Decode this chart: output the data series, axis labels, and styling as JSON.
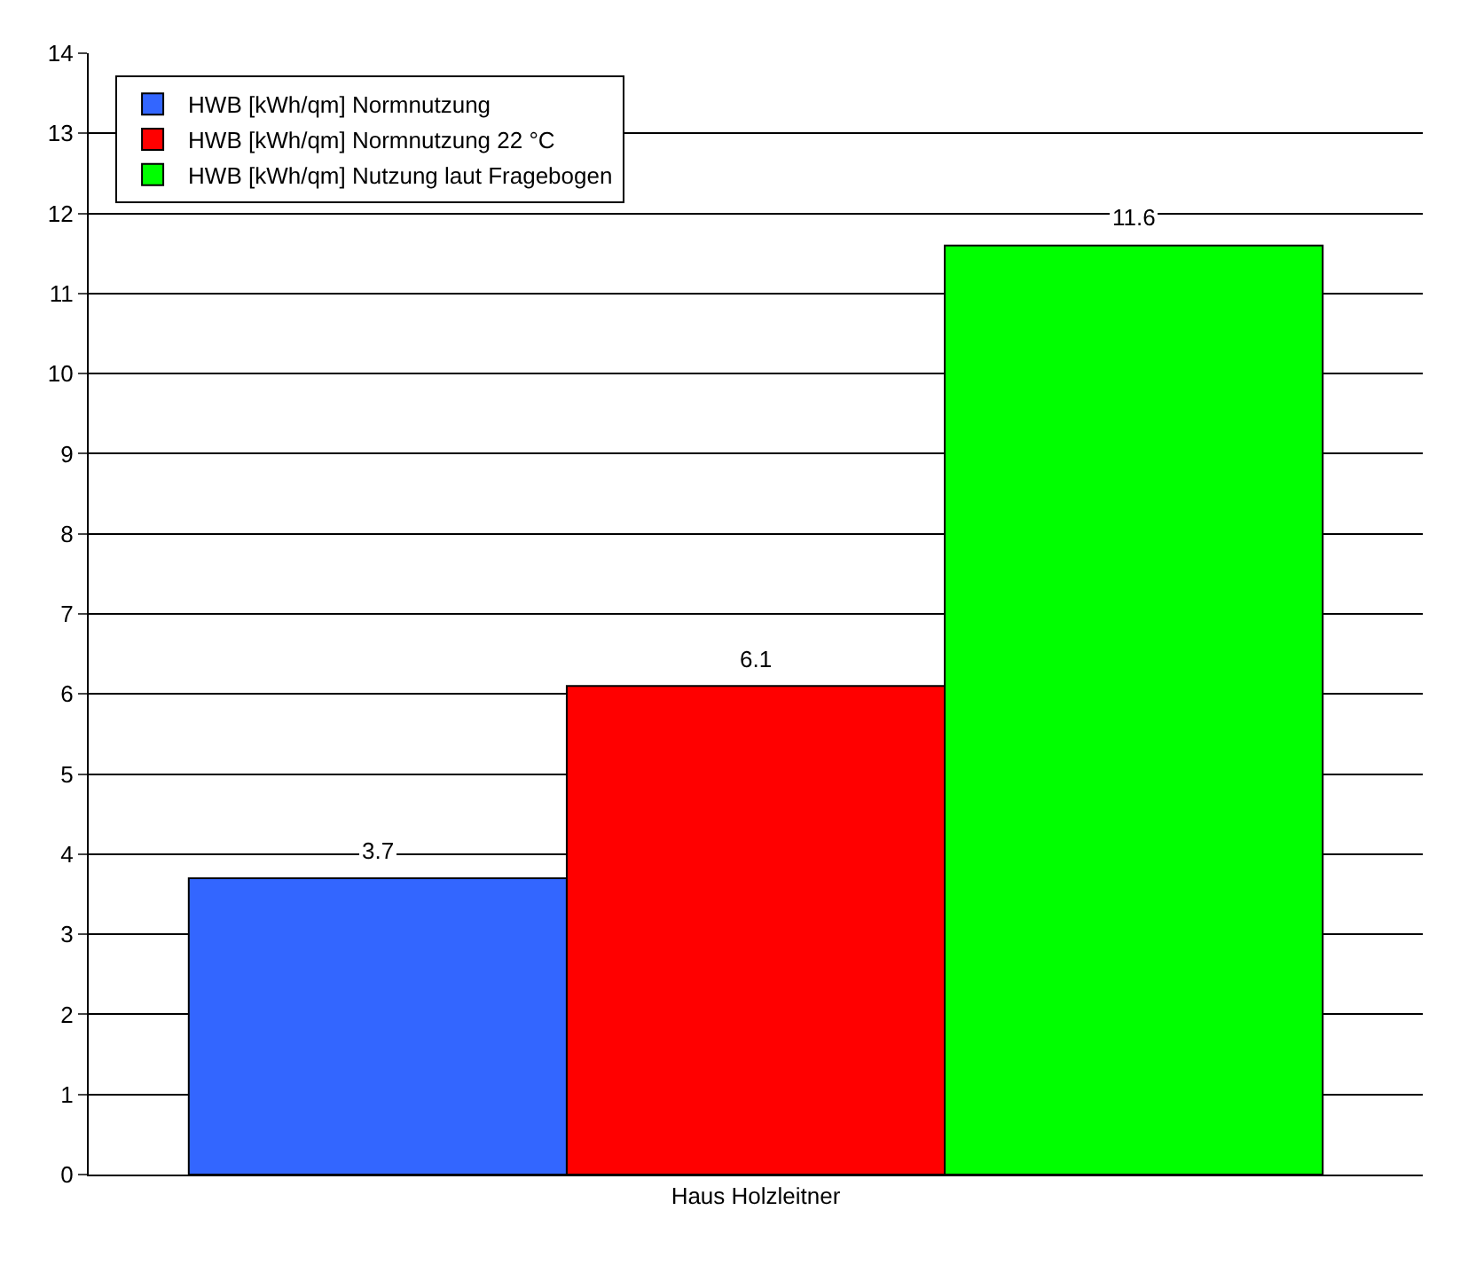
{
  "chart_data": {
    "type": "bar",
    "categories": [
      "Haus Holzleitner"
    ],
    "series": [
      {
        "name": "HWB [kWh/qm] Normnutzung",
        "color": "#3366ff",
        "values": [
          3.7
        ]
      },
      {
        "name": "HWB [kWh/qm] Normnutzung 22 °C",
        "color": "#ff0000",
        "values": [
          6.1
        ]
      },
      {
        "name": "HWB [kWh/qm] Nutzung laut Fragebogen",
        "color": "#00ff00",
        "values": [
          11.6
        ]
      }
    ],
    "ylim": [
      0,
      14
    ],
    "yticks": [
      0,
      1,
      2,
      3,
      4,
      5,
      6,
      7,
      8,
      9,
      10,
      11,
      12,
      13,
      14
    ],
    "grid": "y",
    "legend": "top left",
    "data_labels": true
  }
}
